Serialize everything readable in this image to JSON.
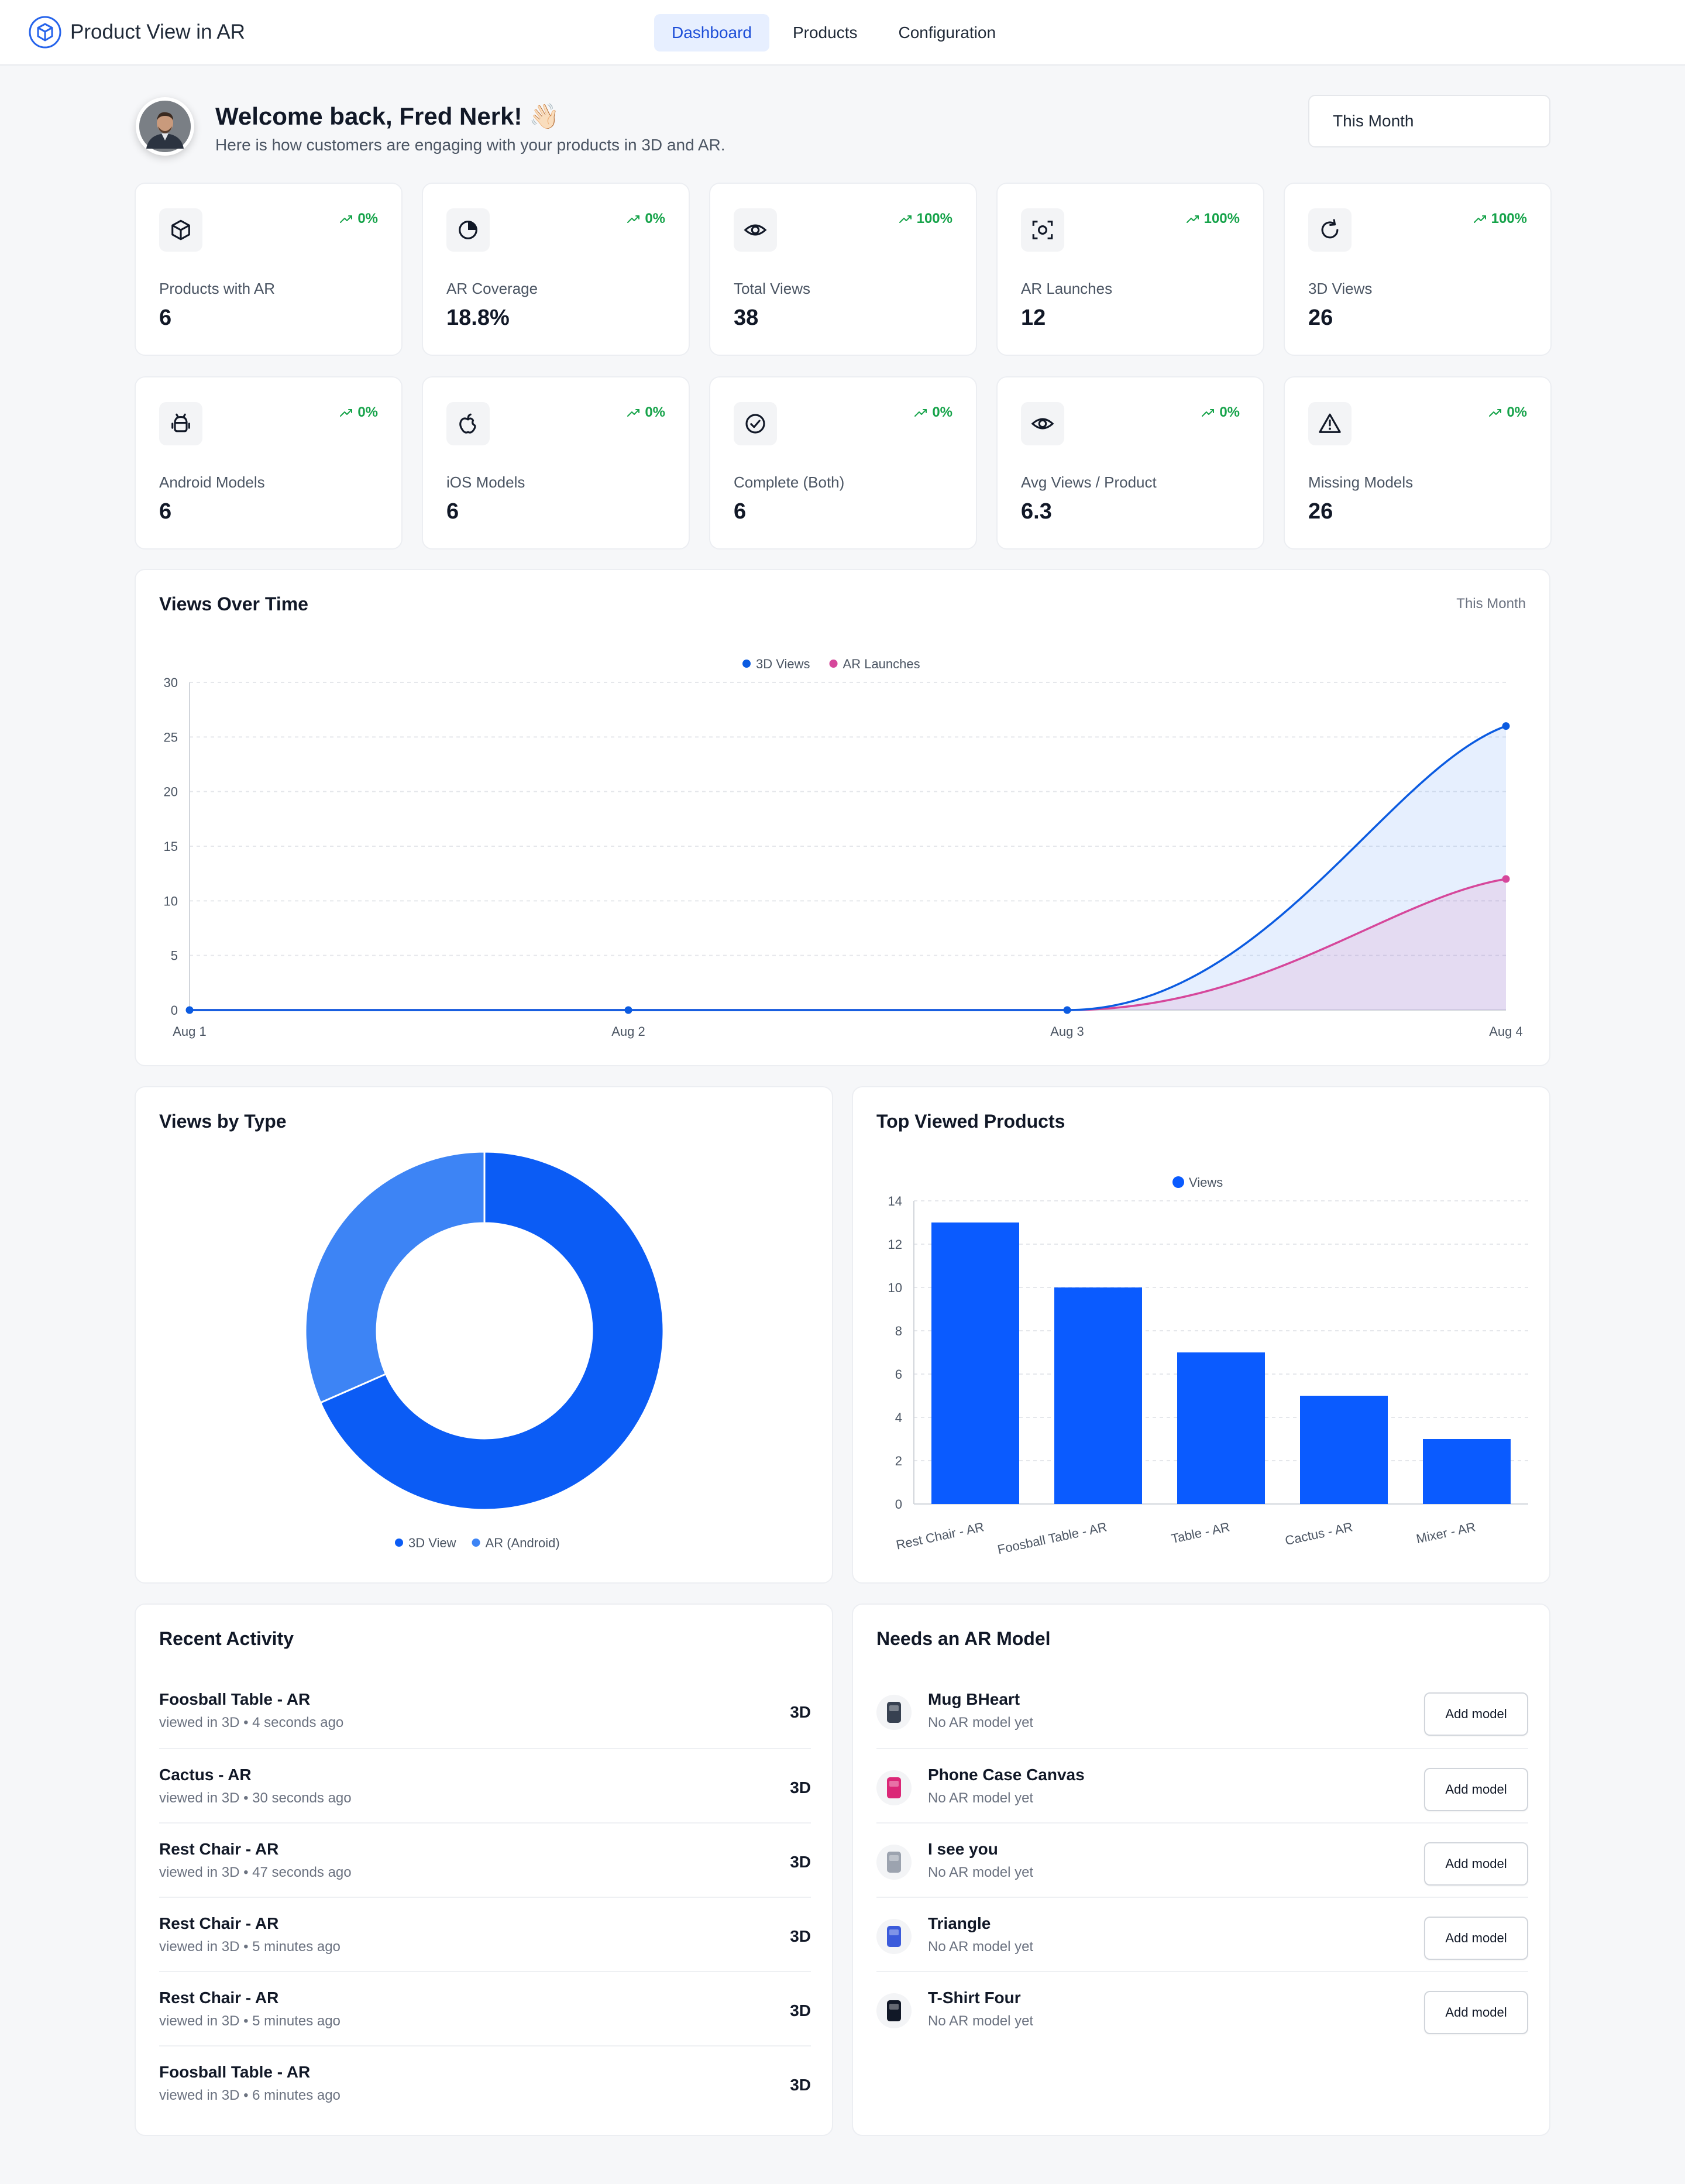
{
  "header": {
    "title": "Product View in AR",
    "tabs": [
      {
        "label": "Dashboard",
        "active": true
      },
      {
        "label": "Products",
        "active": false
      },
      {
        "label": "Configuration",
        "active": false
      }
    ]
  },
  "welcome": {
    "title": "Welcome back, Fred Nerk! 👋🏻",
    "subtitle": "Here is how customers are engaging with your products in 3D and AR.",
    "period": "This Month"
  },
  "stats": [
    {
      "icon": "cube-icon",
      "label": "Products with AR",
      "value": "6",
      "trend": "0%"
    },
    {
      "icon": "pie-chart-icon",
      "label": "AR Coverage",
      "value": "18.8%",
      "trend": "0%"
    },
    {
      "icon": "eye-icon",
      "label": "Total Views",
      "value": "38",
      "trend": "100%"
    },
    {
      "icon": "scan-icon",
      "label": "AR Launches",
      "value": "12",
      "trend": "100%"
    },
    {
      "icon": "rotate-icon",
      "label": "3D Views",
      "value": "26",
      "trend": "100%"
    },
    {
      "icon": "android-icon",
      "label": "Android Models",
      "value": "6",
      "trend": "0%"
    },
    {
      "icon": "apple-icon",
      "label": "iOS Models",
      "value": "6",
      "trend": "0%"
    },
    {
      "icon": "check-circle-icon",
      "label": "Complete (Both)",
      "value": "6",
      "trend": "0%"
    },
    {
      "icon": "eye-icon",
      "label": "Avg Views / Product",
      "value": "6.3",
      "trend": "0%"
    },
    {
      "icon": "warning-icon",
      "label": "Missing Models",
      "value": "26",
      "trend": "0%"
    }
  ],
  "views_over_time": {
    "title": "Views Over Time",
    "period": "This Month"
  },
  "views_by_type": {
    "title": "Views by Type"
  },
  "top_viewed": {
    "title": "Top Viewed Products"
  },
  "chart_data": [
    {
      "type": "area",
      "title": "Views Over Time",
      "x": [
        "Aug 1",
        "Aug 2",
        "Aug 3",
        "Aug 4"
      ],
      "series": [
        {
          "name": "3D Views",
          "values": [
            0,
            0,
            0,
            26
          ],
          "color": "#0b5be1"
        },
        {
          "name": "AR Launches",
          "values": [
            0,
            0,
            0,
            12
          ],
          "color": "#d6479b"
        }
      ],
      "ylim": [
        0,
        30
      ],
      "yticks": [
        0,
        5,
        10,
        15,
        20,
        25,
        30
      ],
      "grid": true,
      "legend": "top-center"
    },
    {
      "type": "pie",
      "title": "Views by Type",
      "donut": true,
      "categories": [
        "3D View",
        "AR (Android)"
      ],
      "values": [
        26,
        12
      ],
      "colors": [
        "#0b5cf5",
        "#3d84f5"
      ],
      "legend": "bottom-center"
    },
    {
      "type": "bar",
      "title": "Top Viewed Products",
      "categories": [
        "Rest Chair - AR",
        "Foosball Table - AR",
        "Table - AR",
        "Cactus - AR",
        "Mixer - AR"
      ],
      "series": [
        {
          "name": "Views",
          "values": [
            13,
            10,
            7,
            5,
            3
          ],
          "color": "#0a5bff"
        }
      ],
      "ylim": [
        0,
        14
      ],
      "yticks": [
        0,
        2,
        4,
        6,
        8,
        10,
        12,
        14
      ],
      "grid": true,
      "legend": "top-center"
    }
  ],
  "recent_activity": {
    "title": "Recent Activity",
    "items": [
      {
        "name": "Foosball Table - AR",
        "detail": "viewed in 3D • 4 seconds ago",
        "badge": "3D"
      },
      {
        "name": "Cactus - AR",
        "detail": "viewed in 3D • 30 seconds ago",
        "badge": "3D"
      },
      {
        "name": "Rest Chair - AR",
        "detail": "viewed in 3D • 47 seconds ago",
        "badge": "3D"
      },
      {
        "name": "Rest Chair - AR",
        "detail": "viewed in 3D • 5 minutes ago",
        "badge": "3D"
      },
      {
        "name": "Rest Chair - AR",
        "detail": "viewed in 3D • 5 minutes ago",
        "badge": "3D"
      },
      {
        "name": "Foosball Table - AR",
        "detail": "viewed in 3D • 6 minutes ago",
        "badge": "3D"
      }
    ]
  },
  "needs_model": {
    "title": "Needs an AR Model",
    "button_label": "Add model",
    "items": [
      {
        "name": "Mug BHeart",
        "detail": "No AR model yet",
        "thumb_color": "#374151"
      },
      {
        "name": "Phone Case Canvas",
        "detail": "No AR model yet",
        "thumb_color": "#db2777"
      },
      {
        "name": "I see you",
        "detail": "No AR model yet",
        "thumb_color": "#9ca3af"
      },
      {
        "name": "Triangle",
        "detail": "No AR model yet",
        "thumb_color": "#3b5bdb"
      },
      {
        "name": "T-Shirt Four",
        "detail": "No AR model yet",
        "thumb_color": "#111827"
      }
    ]
  }
}
